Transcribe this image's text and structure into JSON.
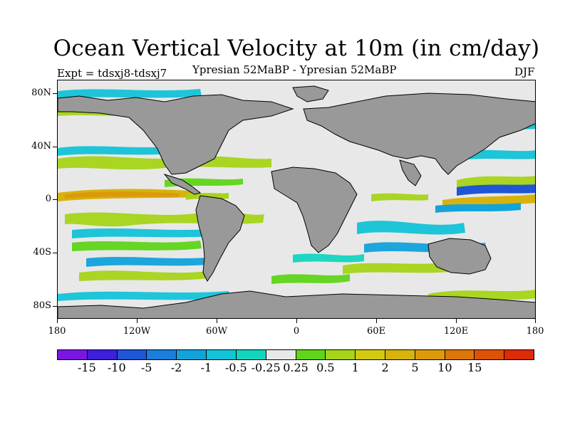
{
  "title": "Ocean Vertical Velocity at 10m (in cm/day)",
  "subtitle_left": "Expt = tdsxj8-tdsxj7",
  "subtitle_center": "Ypresian  52MaBP - Ypresian  52MaBP",
  "subtitle_right": "DJF",
  "y_labels": [
    "80N",
    "40N",
    "0",
    "40S",
    "80S"
  ],
  "x_labels": [
    "180",
    "120W",
    "60W",
    "0",
    "60E",
    "120E",
    "180"
  ],
  "colorbar": {
    "colors": [
      "#7b16e0",
      "#3c1fd8",
      "#1f56d6",
      "#1b7edc",
      "#12a3db",
      "#14c3d8",
      "#14d6bf",
      "#e8e8e8",
      "#5fd619",
      "#a6d419",
      "#d4c911",
      "#d6b30d",
      "#dc9a0b",
      "#dc7609",
      "#dc5207",
      "#dc2b07"
    ],
    "labels": [
      "-15",
      "-10",
      "-5",
      "-2",
      "-1",
      "-0.5",
      "-0.25",
      "0.25",
      "0.5",
      "1",
      "2",
      "5",
      "10",
      "15"
    ]
  },
  "map_colors": {
    "land": "#999999",
    "ocean_background": "#e8e8e8"
  }
}
